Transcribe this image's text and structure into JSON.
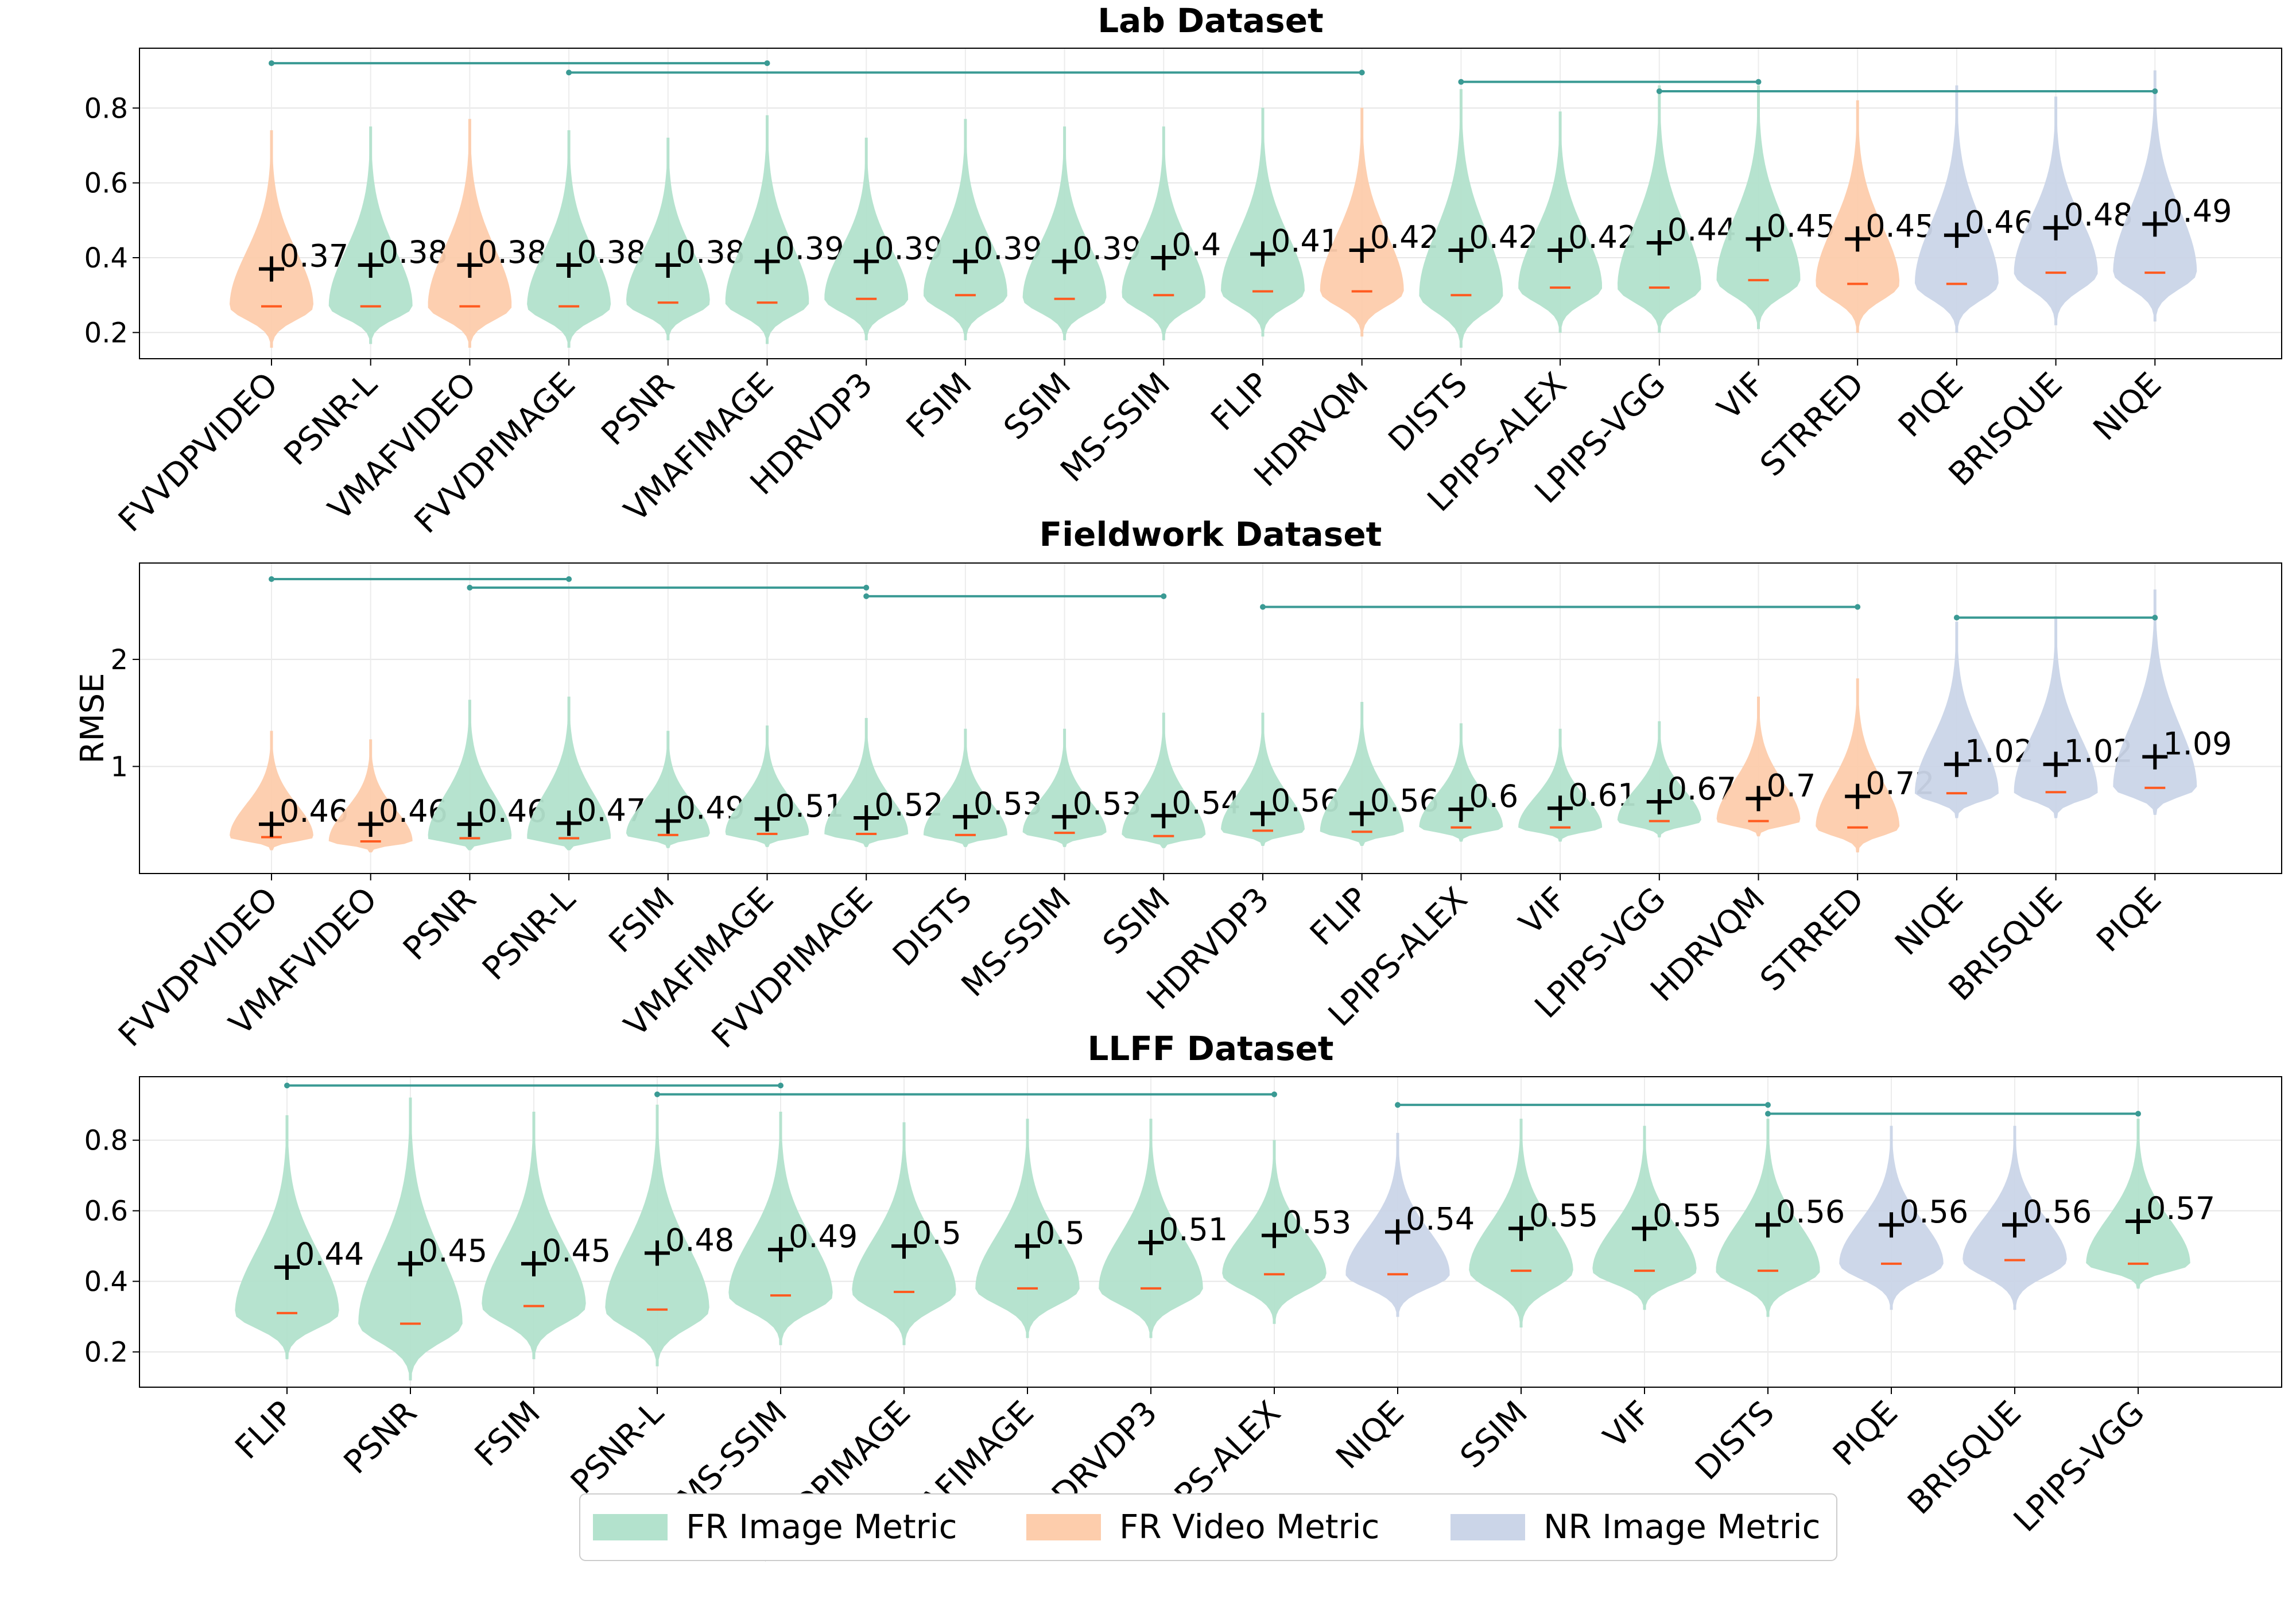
{
  "colors": {
    "FR Image Metric": "#b3e2cd",
    "FR Video Metric": "#fdcdac",
    "NR Image Metric": "#cbd5e8",
    "bracket": "#3a9a94",
    "median": "#ff5a1f"
  },
  "legend": [
    {
      "label": "FR Image Metric"
    },
    {
      "label": "FR Video Metric"
    },
    {
      "label": "NR Image Metric"
    }
  ],
  "chart_data": [
    {
      "type": "violin",
      "title": "Lab Dataset",
      "ylabel": "",
      "ylim": [
        0.13,
        0.96
      ],
      "yticks": [
        0.2,
        0.4,
        0.6,
        0.8
      ],
      "grid": true,
      "categories": [
        {
          "name": "FVVDPVIDEO",
          "type": "FR Video Metric",
          "mean": 0.37,
          "mean_label": "0.37",
          "median": 0.27,
          "min": 0.16,
          "max": 0.74
        },
        {
          "name": "PSNR-L",
          "type": "FR Image Metric",
          "mean": 0.38,
          "mean_label": "0.38",
          "median": 0.27,
          "min": 0.17,
          "max": 0.75
        },
        {
          "name": "VMAFVIDEO",
          "type": "FR Video Metric",
          "mean": 0.38,
          "mean_label": "0.38",
          "median": 0.27,
          "min": 0.16,
          "max": 0.77
        },
        {
          "name": "FVVDPIMAGE",
          "type": "FR Image Metric",
          "mean": 0.38,
          "mean_label": "0.38",
          "median": 0.27,
          "min": 0.16,
          "max": 0.74
        },
        {
          "name": "PSNR",
          "type": "FR Image Metric",
          "mean": 0.38,
          "mean_label": "0.38",
          "median": 0.28,
          "min": 0.18,
          "max": 0.72
        },
        {
          "name": "VMAFIMAGE",
          "type": "FR Image Metric",
          "mean": 0.39,
          "mean_label": "0.39",
          "median": 0.28,
          "min": 0.17,
          "max": 0.78
        },
        {
          "name": "HDRVDP3",
          "type": "FR Image Metric",
          "mean": 0.39,
          "mean_label": "0.39",
          "median": 0.29,
          "min": 0.18,
          "max": 0.72
        },
        {
          "name": "FSIM",
          "type": "FR Image Metric",
          "mean": 0.39,
          "mean_label": "0.39",
          "median": 0.3,
          "min": 0.18,
          "max": 0.77
        },
        {
          "name": "SSIM",
          "type": "FR Image Metric",
          "mean": 0.39,
          "mean_label": "0.39",
          "median": 0.29,
          "min": 0.18,
          "max": 0.75
        },
        {
          "name": "MS-SSIM",
          "type": "FR Image Metric",
          "mean": 0.4,
          "mean_label": "0.4",
          "median": 0.3,
          "min": 0.18,
          "max": 0.75
        },
        {
          "name": "FLIP",
          "type": "FR Image Metric",
          "mean": 0.41,
          "mean_label": "0.41",
          "median": 0.31,
          "min": 0.19,
          "max": 0.8
        },
        {
          "name": "HDRVQM",
          "type": "FR Video Metric",
          "mean": 0.42,
          "mean_label": "0.42",
          "median": 0.31,
          "min": 0.19,
          "max": 0.8
        },
        {
          "name": "DISTS",
          "type": "FR Image Metric",
          "mean": 0.42,
          "mean_label": "0.42",
          "median": 0.3,
          "min": 0.16,
          "max": 0.85
        },
        {
          "name": "LPIPS-ALEX",
          "type": "FR Image Metric",
          "mean": 0.42,
          "mean_label": "0.42",
          "median": 0.32,
          "min": 0.2,
          "max": 0.79
        },
        {
          "name": "LPIPS-VGG",
          "type": "FR Image Metric",
          "mean": 0.44,
          "mean_label": "0.44",
          "median": 0.32,
          "min": 0.2,
          "max": 0.86
        },
        {
          "name": "VIF",
          "type": "FR Image Metric",
          "mean": 0.45,
          "mean_label": "0.45",
          "median": 0.34,
          "min": 0.21,
          "max": 0.86
        },
        {
          "name": "STRRED",
          "type": "FR Video Metric",
          "mean": 0.45,
          "mean_label": "0.45",
          "median": 0.33,
          "min": 0.2,
          "max": 0.82
        },
        {
          "name": "PIQE",
          "type": "NR Image Metric",
          "mean": 0.46,
          "mean_label": "0.46",
          "median": 0.33,
          "min": 0.2,
          "max": 0.86
        },
        {
          "name": "BRISQUE",
          "type": "NR Image Metric",
          "mean": 0.48,
          "mean_label": "0.48",
          "median": 0.36,
          "min": 0.22,
          "max": 0.83
        },
        {
          "name": "NIQE",
          "type": "NR Image Metric",
          "mean": 0.49,
          "mean_label": "0.49",
          "median": 0.36,
          "min": 0.23,
          "max": 0.9
        }
      ],
      "brackets": [
        {
          "from": "FVVDPVIDEO",
          "to": "VMAFIMAGE",
          "y": 0.92
        },
        {
          "from": "FVVDPIMAGE",
          "to": "HDRVQM",
          "y": 0.895
        },
        {
          "from": "DISTS",
          "to": "VIF",
          "y": 0.87
        },
        {
          "from": "LPIPS-VGG",
          "to": "NIQE",
          "y": 0.845
        }
      ]
    },
    {
      "type": "violin",
      "title": "Fieldwork Dataset",
      "ylabel": "RMSE",
      "ylim": [
        0.0,
        2.9
      ],
      "yticks": [
        1,
        2
      ],
      "grid": true,
      "categories": [
        {
          "name": "FVVDPVIDEO",
          "type": "FR Video Metric",
          "mean": 0.46,
          "mean_label": "0.46",
          "median": 0.34,
          "min": 0.22,
          "max": 1.33
        },
        {
          "name": "VMAFVIDEO",
          "type": "FR Video Metric",
          "mean": 0.46,
          "mean_label": "0.46",
          "median": 0.3,
          "min": 0.2,
          "max": 1.25
        },
        {
          "name": "PSNR",
          "type": "FR Image Metric",
          "mean": 0.46,
          "mean_label": "0.46",
          "median": 0.33,
          "min": 0.22,
          "max": 1.62
        },
        {
          "name": "PSNR-L",
          "type": "FR Image Metric",
          "mean": 0.47,
          "mean_label": "0.47",
          "median": 0.33,
          "min": 0.22,
          "max": 1.65
        },
        {
          "name": "FSIM",
          "type": "FR Image Metric",
          "mean": 0.49,
          "mean_label": "0.49",
          "median": 0.36,
          "min": 0.24,
          "max": 1.33
        },
        {
          "name": "VMAFIMAGE",
          "type": "FR Image Metric",
          "mean": 0.51,
          "mean_label": "0.51",
          "median": 0.37,
          "min": 0.25,
          "max": 1.38
        },
        {
          "name": "FVVDPIMAGE",
          "type": "FR Image Metric",
          "mean": 0.52,
          "mean_label": "0.52",
          "median": 0.37,
          "min": 0.25,
          "max": 1.45
        },
        {
          "name": "DISTS",
          "type": "FR Image Metric",
          "mean": 0.53,
          "mean_label": "0.53",
          "median": 0.36,
          "min": 0.25,
          "max": 1.35
        },
        {
          "name": "MS-SSIM",
          "type": "FR Image Metric",
          "mean": 0.53,
          "mean_label": "0.53",
          "median": 0.38,
          "min": 0.25,
          "max": 1.35
        },
        {
          "name": "SSIM",
          "type": "FR Image Metric",
          "mean": 0.54,
          "mean_label": "0.54",
          "median": 0.35,
          "min": 0.24,
          "max": 1.5
        },
        {
          "name": "HDRVDP3",
          "type": "FR Image Metric",
          "mean": 0.56,
          "mean_label": "0.56",
          "median": 0.4,
          "min": 0.26,
          "max": 1.5
        },
        {
          "name": "FLIP",
          "type": "FR Image Metric",
          "mean": 0.56,
          "mean_label": "0.56",
          "median": 0.39,
          "min": 0.26,
          "max": 1.6
        },
        {
          "name": "LPIPS-ALEX",
          "type": "FR Image Metric",
          "mean": 0.6,
          "mean_label": "0.6",
          "median": 0.43,
          "min": 0.3,
          "max": 1.4
        },
        {
          "name": "VIF",
          "type": "FR Image Metric",
          "mean": 0.61,
          "mean_label": "0.61",
          "median": 0.43,
          "min": 0.3,
          "max": 1.35
        },
        {
          "name": "LPIPS-VGG",
          "type": "FR Image Metric",
          "mean": 0.67,
          "mean_label": "0.67",
          "median": 0.49,
          "min": 0.34,
          "max": 1.42
        },
        {
          "name": "HDRVQM",
          "type": "FR Video Metric",
          "mean": 0.7,
          "mean_label": "0.7",
          "median": 0.49,
          "min": 0.35,
          "max": 1.65
        },
        {
          "name": "STRRED",
          "type": "FR Video Metric",
          "mean": 0.72,
          "mean_label": "0.72",
          "median": 0.43,
          "min": 0.2,
          "max": 1.82
        },
        {
          "name": "NIQE",
          "type": "NR Image Metric",
          "mean": 1.02,
          "mean_label": "1.02",
          "median": 0.75,
          "min": 0.52,
          "max": 2.35
        },
        {
          "name": "BRISQUE",
          "type": "NR Image Metric",
          "mean": 1.02,
          "mean_label": "1.02",
          "median": 0.76,
          "min": 0.52,
          "max": 2.4
        },
        {
          "name": "PIQE",
          "type": "NR Image Metric",
          "mean": 1.09,
          "mean_label": "1.09",
          "median": 0.8,
          "min": 0.55,
          "max": 2.65
        }
      ],
      "brackets": [
        {
          "from": "FVVDPVIDEO",
          "to": "PSNR-L",
          "y": 2.75
        },
        {
          "from": "PSNR",
          "to": "FVVDPIMAGE",
          "y": 2.67
        },
        {
          "from": "FVVDPIMAGE",
          "to": "SSIM",
          "y": 2.59
        },
        {
          "from": "HDRVDP3",
          "to": "STRRED",
          "y": 2.49
        },
        {
          "from": "NIQE",
          "to": "PIQE",
          "y": 2.39
        }
      ]
    },
    {
      "type": "violin",
      "title": "LLFF Dataset",
      "ylabel": "",
      "ylim": [
        0.1,
        0.98
      ],
      "yticks": [
        0.2,
        0.4,
        0.6,
        0.8
      ],
      "grid": true,
      "categories": [
        {
          "name": "FLIP",
          "type": "FR Image Metric",
          "mean": 0.44,
          "mean_label": "0.44",
          "median": 0.31,
          "min": 0.18,
          "max": 0.87
        },
        {
          "name": "PSNR",
          "type": "FR Image Metric",
          "mean": 0.45,
          "mean_label": "0.45",
          "median": 0.28,
          "min": 0.12,
          "max": 0.92
        },
        {
          "name": "FSIM",
          "type": "FR Image Metric",
          "mean": 0.45,
          "mean_label": "0.45",
          "median": 0.33,
          "min": 0.18,
          "max": 0.88
        },
        {
          "name": "PSNR-L",
          "type": "FR Image Metric",
          "mean": 0.48,
          "mean_label": "0.48",
          "median": 0.32,
          "min": 0.16,
          "max": 0.9
        },
        {
          "name": "MS-SSIM",
          "type": "FR Image Metric",
          "mean": 0.49,
          "mean_label": "0.49",
          "median": 0.36,
          "min": 0.22,
          "max": 0.88
        },
        {
          "name": "FVVDPIMAGE",
          "type": "FR Image Metric",
          "mean": 0.5,
          "mean_label": "0.5",
          "median": 0.37,
          "min": 0.22,
          "max": 0.85
        },
        {
          "name": "VMAFIMAGE",
          "type": "FR Image Metric",
          "mean": 0.5,
          "mean_label": "0.5",
          "median": 0.38,
          "min": 0.24,
          "max": 0.86
        },
        {
          "name": "HDRVDP3",
          "type": "FR Image Metric",
          "mean": 0.51,
          "mean_label": "0.51",
          "median": 0.38,
          "min": 0.24,
          "max": 0.86
        },
        {
          "name": "LPIPS-ALEX",
          "type": "FR Image Metric",
          "mean": 0.53,
          "mean_label": "0.53",
          "median": 0.42,
          "min": 0.28,
          "max": 0.8
        },
        {
          "name": "NIQE",
          "type": "NR Image Metric",
          "mean": 0.54,
          "mean_label": "0.54",
          "median": 0.42,
          "min": 0.3,
          "max": 0.82
        },
        {
          "name": "SSIM",
          "type": "FR Image Metric",
          "mean": 0.55,
          "mean_label": "0.55",
          "median": 0.43,
          "min": 0.27,
          "max": 0.86
        },
        {
          "name": "VIF",
          "type": "FR Image Metric",
          "mean": 0.55,
          "mean_label": "0.55",
          "median": 0.43,
          "min": 0.32,
          "max": 0.84
        },
        {
          "name": "DISTS",
          "type": "FR Image Metric",
          "mean": 0.56,
          "mean_label": "0.56",
          "median": 0.43,
          "min": 0.3,
          "max": 0.86
        },
        {
          "name": "PIQE",
          "type": "NR Image Metric",
          "mean": 0.56,
          "mean_label": "0.56",
          "median": 0.45,
          "min": 0.32,
          "max": 0.84
        },
        {
          "name": "BRISQUE",
          "type": "NR Image Metric",
          "mean": 0.56,
          "mean_label": "0.56",
          "median": 0.46,
          "min": 0.32,
          "max": 0.84
        },
        {
          "name": "LPIPS-VGG",
          "type": "FR Image Metric",
          "mean": 0.57,
          "mean_label": "0.57",
          "median": 0.45,
          "min": 0.38,
          "max": 0.86
        }
      ],
      "brackets": [
        {
          "from": "FLIP",
          "to": "MS-SSIM",
          "y": 0.955
        },
        {
          "from": "PSNR-L",
          "to": "LPIPS-ALEX",
          "y": 0.93
        },
        {
          "from": "NIQE",
          "to": "DISTS",
          "y": 0.9
        },
        {
          "from": "DISTS",
          "to": "LPIPS-VGG",
          "y": 0.875
        }
      ]
    }
  ]
}
